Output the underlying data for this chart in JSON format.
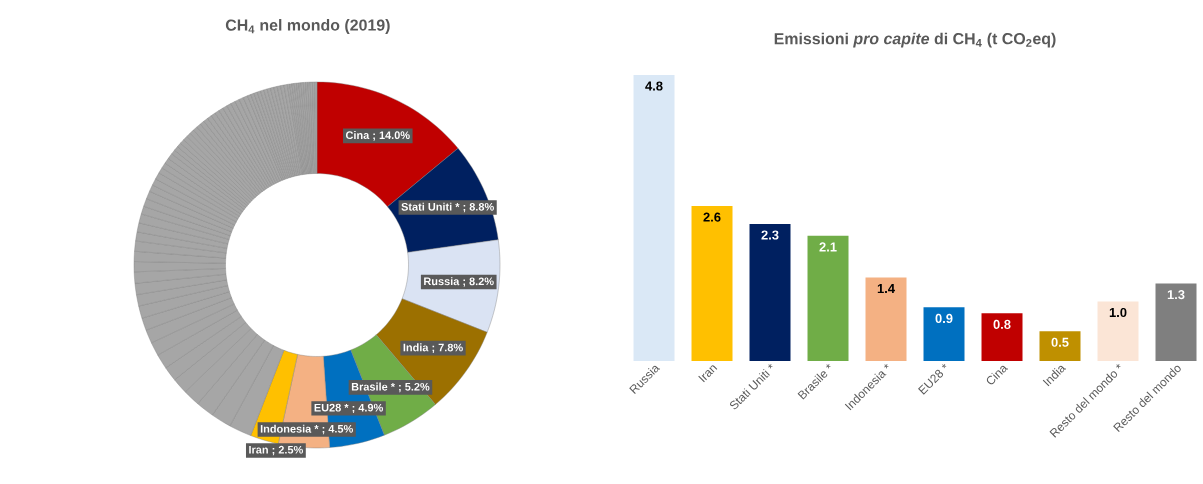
{
  "chart_data": [
    {
      "type": "donut",
      "title": "CH$_{4}$ nel mondo (2019)",
      "categories": [
        "Cina",
        "Stati Uniti *",
        "Russia",
        "India",
        "Brasile *",
        "EU28 *",
        "Indonesia *",
        "Iran",
        null,
        null,
        null,
        null,
        null,
        null,
        null,
        null,
        null,
        null,
        null,
        null,
        null,
        null,
        null,
        null,
        null,
        null,
        null,
        null,
        null,
        null,
        null,
        null,
        null,
        null,
        null,
        null,
        null,
        null,
        null,
        null,
        null,
        null,
        null,
        null,
        null,
        null,
        null,
        null,
        null,
        null,
        null,
        null,
        null,
        null,
        null,
        null,
        null,
        null,
        null,
        null,
        null,
        null,
        null,
        null,
        null,
        null,
        null,
        null,
        null,
        null,
        null,
        null,
        null,
        null,
        null,
        null,
        null,
        null,
        null,
        null,
        null,
        null,
        null,
        null
      ],
      "values": [
        14.0,
        8.8,
        8.2,
        7.8,
        5.2,
        4.9,
        4.5,
        2.5,
        2.0,
        1.8,
        1.6,
        1.5,
        1.4,
        1.3,
        1.3,
        1.2,
        1.2,
        1.1,
        1.1,
        1.0,
        1.0,
        1.0,
        0.9,
        0.9,
        0.9,
        0.8,
        0.8,
        0.8,
        0.7,
        0.7,
        0.7,
        0.6,
        0.6,
        0.6,
        0.5,
        0.5,
        0.5,
        0.5,
        0.4,
        0.4,
        0.4,
        0.4,
        0.4,
        0.4,
        0.4,
        0.4,
        0.4,
        0.4,
        0.4,
        0.4,
        0.4,
        0.4,
        0.4,
        0.4,
        0.4,
        0.4,
        0.4,
        0.4,
        0.4,
        0.3,
        0.3,
        0.3,
        0.3,
        0.3,
        0.3,
        0.3,
        0.3,
        0.3,
        0.3,
        0.3,
        0.3,
        0.2,
        0.2,
        0.2,
        0.2,
        0.2,
        0.2,
        0.2,
        0.2,
        0.2,
        0.2,
        0.2,
        0.2,
        0.2
      ],
      "colors": [
        "#c00000",
        "#002060",
        "#dae3f3",
        "#9c7000",
        "#70ad47",
        "#0070c0",
        "#f4b183",
        "#ffc000",
        "#a6a6a6",
        "#a6a6a6",
        "#a6a6a6",
        "#a6a6a6",
        "#a6a6a6",
        "#a6a6a6",
        "#a6a6a6",
        "#a6a6a6",
        "#a6a6a6",
        "#a6a6a6",
        "#a6a6a6",
        "#a6a6a6",
        "#a6a6a6",
        "#a6a6a6",
        "#a6a6a6",
        "#a6a6a6",
        "#a6a6a6",
        "#a6a6a6",
        "#a6a6a6",
        "#a6a6a6",
        "#a6a6a6",
        "#a6a6a6",
        "#a6a6a6",
        "#a6a6a6",
        "#a6a6a6",
        "#a6a6a6",
        "#a6a6a6",
        "#a6a6a6",
        "#a6a6a6",
        "#a6a6a6",
        "#a6a6a6",
        "#a6a6a6",
        "#a6a6a6",
        "#a6a6a6",
        "#a6a6a6",
        "#a6a6a6",
        "#a6a6a6",
        "#a6a6a6",
        "#a6a6a6",
        "#a6a6a6",
        "#a6a6a6",
        "#a6a6a6",
        "#a6a6a6",
        "#a6a6a6",
        "#a6a6a6",
        "#a6a6a6",
        "#a6a6a6",
        "#a6a6a6",
        "#a6a6a6",
        "#a6a6a6",
        "#a6a6a6",
        "#a6a6a6",
        "#a6a6a6",
        "#a6a6a6",
        "#a6a6a6",
        "#a6a6a6",
        "#a6a6a6",
        "#a6a6a6",
        "#a6a6a6",
        "#a6a6a6",
        "#a6a6a6",
        "#a6a6a6",
        "#a6a6a6",
        "#a6a6a6",
        "#a6a6a6",
        "#a6a6a6",
        "#a6a6a6",
        "#a6a6a6",
        "#a6a6a6",
        "#a6a6a6",
        "#a6a6a6",
        "#a6a6a6",
        "#a6a6a6",
        "#a6a6a6",
        "#a6a6a6",
        "#a6a6a6"
      ],
      "value_labels": [
        "; 14.0%",
        "; 8.8%",
        "; 8.2%",
        "; 7.8%",
        "; 5.2%",
        "; 4.9%",
        "; 4.5%",
        "; 2.5%",
        null,
        null,
        null,
        null,
        null,
        null,
        null,
        null,
        null,
        null,
        null,
        null,
        null,
        null,
        null,
        null,
        null,
        null,
        null,
        null,
        null,
        null,
        null,
        null,
        null,
        null,
        null,
        null,
        null,
        null,
        null,
        null,
        null,
        null,
        null,
        null,
        null,
        null,
        null,
        null,
        null,
        null,
        null,
        null,
        null,
        null,
        null,
        null,
        null,
        null,
        null,
        null,
        null,
        null,
        null,
        null,
        null,
        null,
        null,
        null,
        null,
        null,
        null,
        null,
        null,
        null,
        null,
        null,
        null,
        null,
        null,
        null,
        null,
        null,
        null,
        null
      ]
    },
    {
      "type": "bar",
      "title": "Emissioni *pro capite* di CH$_{4}$ (t CO$_{2}$eq)",
      "categories": [
        "Russia",
        "Iran",
        "Stati Uniti *",
        "Brasile *",
        "Indonesia *",
        "EU28 *",
        "Cina",
        "India",
        "Resto del mondo *",
        "Resto del mondo"
      ],
      "values": [
        4.8,
        2.6,
        2.3,
        2.1,
        1.4,
        0.9,
        0.8,
        0.5,
        1.0,
        1.3
      ],
      "colors": [
        "#dae8f6",
        "#ffc000",
        "#002060",
        "#70ad47",
        "#f4b183",
        "#0070c0",
        "#c00000",
        "#bf9000",
        "#fbe5d6",
        "#7f7f7f"
      ],
      "value_labels": [
        "4.8",
        "2.6",
        "2.3",
        "2.1",
        "1.4",
        "0.9",
        "0.8",
        "0.5",
        "1.0",
        "1.3"
      ]
    }
  ]
}
